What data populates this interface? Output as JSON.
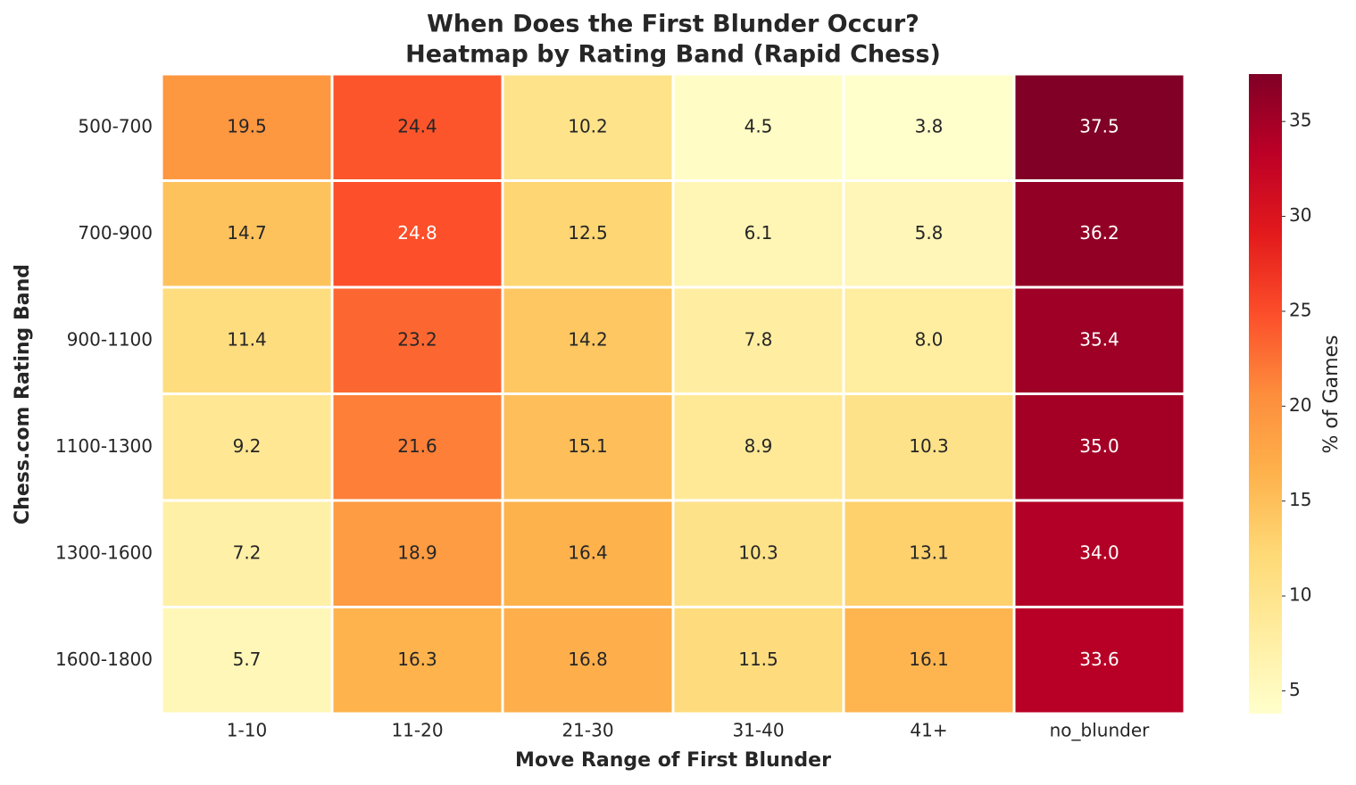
{
  "chart_data": {
    "type": "heatmap",
    "title": "When Does the First Blunder Occur?",
    "subtitle": "Heatmap by Rating Band (Rapid Chess)",
    "x_label": "Move Range of First Blunder",
    "y_label": "Chess.com Rating Band",
    "colorbar_label": "% of Games",
    "x_categories": [
      "1-10",
      "11-20",
      "21-30",
      "31-40",
      "41+",
      "no_blunder"
    ],
    "y_categories": [
      "500-700",
      "700-900",
      "900-1100",
      "1100-1300",
      "1300-1600",
      "1600-1800"
    ],
    "values": [
      [
        19.5,
        24.4,
        10.2,
        4.5,
        3.8,
        37.5
      ],
      [
        14.7,
        24.8,
        12.5,
        6.1,
        5.8,
        36.2
      ],
      [
        11.4,
        23.2,
        14.2,
        7.8,
        8.0,
        35.4
      ],
      [
        9.2,
        21.6,
        15.1,
        8.9,
        10.3,
        35.0
      ],
      [
        7.2,
        18.9,
        16.4,
        10.3,
        13.1,
        34.0
      ],
      [
        5.7,
        16.3,
        16.8,
        11.5,
        16.1,
        33.6
      ]
    ],
    "value_labels": [
      [
        "19.5",
        "24.4",
        "10.2",
        "4.5",
        "3.8",
        "37.5"
      ],
      [
        "14.7",
        "24.8",
        "12.5",
        "6.1",
        "5.8",
        "36.2"
      ],
      [
        "11.4",
        "23.2",
        "14.2",
        "7.8",
        "8.0",
        "35.4"
      ],
      [
        "9.2",
        "21.6",
        "15.1",
        "8.9",
        "10.3",
        "35.0"
      ],
      [
        "7.2",
        "18.9",
        "16.4",
        "10.3",
        "13.1",
        "34.0"
      ],
      [
        "5.7",
        "16.3",
        "16.8",
        "11.5",
        "16.1",
        "33.6"
      ]
    ],
    "zlim": [
      3.8,
      37.5
    ],
    "zticks": [
      5,
      10,
      15,
      20,
      25,
      30,
      35
    ],
    "colormap": [
      "#ffffcc",
      "#ffeda0",
      "#fed976",
      "#feb24c",
      "#fd8d3c",
      "#fc4e2a",
      "#e31a1c",
      "#bd0026",
      "#800026"
    ]
  }
}
